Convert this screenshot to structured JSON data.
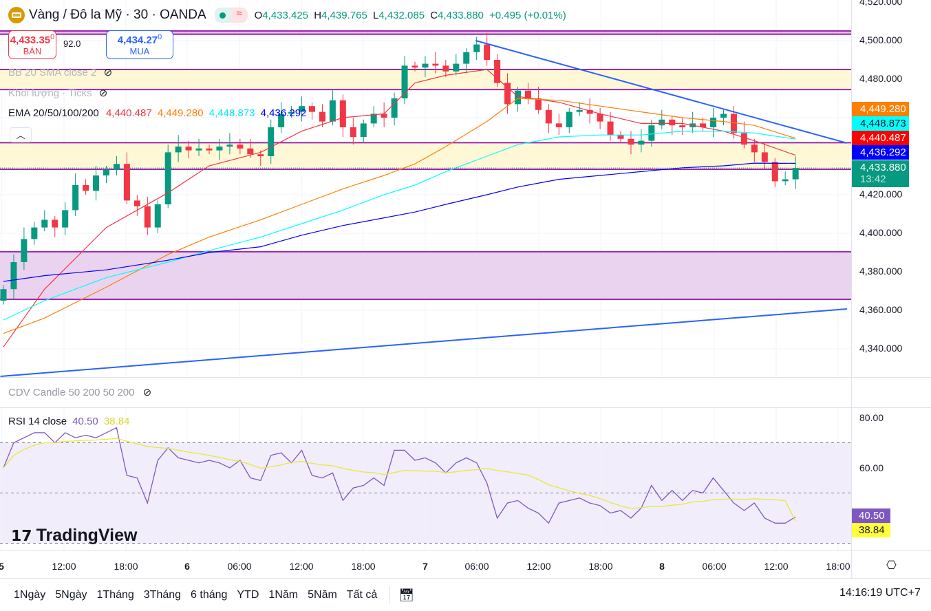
{
  "header": {
    "symbol_title": "Vàng / Đô la Mỹ · 30 · OANDA",
    "o_label": "O",
    "o": "4,433.425",
    "h_label": "H",
    "h": "4,439.765",
    "l_label": "L",
    "l": "4,432.085",
    "c_label": "C",
    "c": "4,433.880",
    "change": "+0.495 (+0.01%)"
  },
  "trade": {
    "sell_price": "4,433.35",
    "sell_sup": "0",
    "sell_label": "BÁN",
    "spread": "92.0",
    "buy_price": "4,434.27",
    "buy_sup": "0",
    "buy_label": "MUA"
  },
  "indicators": {
    "bb": "BB 20 SMA close 2",
    "volume": "Khối lượng · Ticks",
    "ema_label": "EMA 20/50/100/200",
    "ema20": "4,440.487",
    "ema50": "4,449.280",
    "ema100": "4,448.873",
    "ema200": "4,436.292",
    "cdv": "CDV Candle 50 200 50 200",
    "rsi_label": "RSI 14 close",
    "rsi": "40.50",
    "rsi_ma": "38.84"
  },
  "price_axis": [
    "4,520.000",
    "4,500.000",
    "4,480.000",
    "4,420.000",
    "4,400.000",
    "4,380.000",
    "4,360.000",
    "4,340.000"
  ],
  "price_tags": {
    "ema50": "4,449.280",
    "ema100": "4,448.873",
    "ema20": "4,440.487",
    "ema200": "4,436.292",
    "last": "4,433.880",
    "countdown": "13:42"
  },
  "rsi_axis": [
    "80.00",
    "60.00"
  ],
  "rsi_tags": {
    "rsi": "40.50",
    "ma": "38.84"
  },
  "time_axis": [
    "5",
    "12:00",
    "18:00",
    "6",
    "06:00",
    "12:00",
    "18:00",
    "7",
    "06:00",
    "12:00",
    "18:00",
    "8",
    "06:00",
    "12:00",
    "18:00"
  ],
  "range_buttons": [
    "1Ngày",
    "5Ngày",
    "1Tháng",
    "3Tháng",
    "6 tháng",
    "YTD",
    "1Năm",
    "5Năm",
    "Tất cả"
  ],
  "clock": "14:16:19 UTC+7",
  "watermark": "TradingView",
  "colors": {
    "up": "#089981",
    "down": "#f23645",
    "ema20": "#f23645",
    "ema50": "#ff7f00",
    "ema100": "#00ffff",
    "ema200": "#0000ff",
    "rsi": "#7e57c2",
    "rsi_ma": "#e8e83a",
    "zone": "#9c27b0"
  },
  "chart_data": {
    "type": "candlestick",
    "interval": "30m",
    "closes": [
      4371,
      4385,
      4397,
      4403,
      4407,
      4403,
      4412,
      4425,
      4422,
      4430,
      4433,
      4436,
      4417,
      4414,
      4403,
      4415,
      4442,
      4445,
      4443,
      4444,
      4443,
      4445,
      4446,
      4444,
      4441,
      4440,
      4455,
      4462,
      4463,
      4466,
      4463,
      4458,
      4469,
      4455,
      4450,
      4457,
      4462,
      4460,
      4470,
      4487,
      4486,
      4488,
      4487,
      4484,
      4488,
      4494,
      4498,
      4490,
      4478,
      4467,
      4474,
      4470,
      4464,
      4457,
      4455,
      4463,
      4464,
      4462,
      4458,
      4451,
      4449,
      4446,
      4448,
      4456,
      4459,
      4456,
      4455,
      4457,
      4455,
      4460,
      4462,
      4452,
      4446,
      4442,
      4437,
      4427,
      4428,
      4433.88
    ],
    "ema": {
      "x_index": [
        0,
        4,
        10,
        16,
        20,
        25,
        29,
        33,
        37,
        40,
        43,
        47,
        50,
        54,
        58,
        62,
        66,
        70,
        73,
        77
      ],
      "ema20": [
        4341,
        4371,
        4403,
        4421,
        4435,
        4442,
        4453,
        4460,
        4462,
        4478,
        4482,
        4485,
        4471,
        4468,
        4462,
        4457,
        4457,
        4453,
        4448,
        4440.487
      ],
      "ema50": [
        4348,
        4356,
        4372,
        4389,
        4398,
        4407,
        4415,
        4423,
        4430,
        4436,
        4445,
        4458,
        4470,
        4469,
        4466,
        4463,
        4460,
        4458,
        4456,
        4449.28
      ],
      "ema100": [
        4355,
        4365,
        4377,
        4385,
        4391,
        4398,
        4405,
        4412,
        4420,
        4425,
        4432,
        4440,
        4446,
        4450,
        4451,
        4451,
        4453,
        4453,
        4452,
        4448.873
      ],
      "ema200": [
        4375,
        4378,
        4381,
        4386,
        4390,
        4393,
        4399,
        4404,
        4408,
        4411,
        4415,
        4420,
        4424,
        4428,
        4430,
        4432,
        4434,
        4435,
        4436.4,
        4436.292
      ]
    },
    "zones": [
      {
        "top": 4505,
        "bottom": 4503.3,
        "fill": "#e1bee7"
      },
      {
        "top": 4485,
        "bottom": 4474.6,
        "fill": "#fff8d6"
      },
      {
        "top": 4447,
        "bottom": 4433.2,
        "fill": "#fff8d6"
      },
      {
        "top": 4390.4,
        "bottom": 4365.7,
        "fill": "#ead3ef"
      }
    ],
    "trendlines": [
      {
        "from": [
          45.9,
          4500
        ],
        "to": [
          82,
          4446.8
        ]
      },
      {
        "from": [
          -0.3,
          4325.7
        ],
        "to": [
          82,
          4360.7
        ]
      }
    ],
    "rsi": [
      60,
      70,
      72,
      74,
      74,
      70,
      74,
      72,
      73,
      72,
      74,
      76,
      57,
      56,
      46,
      63,
      68,
      64,
      63,
      62,
      63,
      62,
      60,
      63,
      56,
      55,
      65,
      66,
      62,
      67,
      57,
      56,
      58,
      47,
      52,
      53,
      56,
      53,
      67,
      67,
      63,
      64,
      62,
      58,
      62,
      64,
      62,
      54,
      40,
      46,
      47,
      44,
      42,
      38,
      46,
      47,
      48,
      46,
      45,
      42,
      43,
      40,
      44,
      53,
      47,
      51,
      47,
      51,
      50,
      56,
      51,
      46,
      43,
      46,
      40,
      38,
      38,
      40.5
    ],
    "rsi_levels": [
      70,
      50,
      30
    ],
    "ylim": [
      4320,
      4522
    ],
    "rsi_ylim": [
      28,
      82
    ]
  }
}
